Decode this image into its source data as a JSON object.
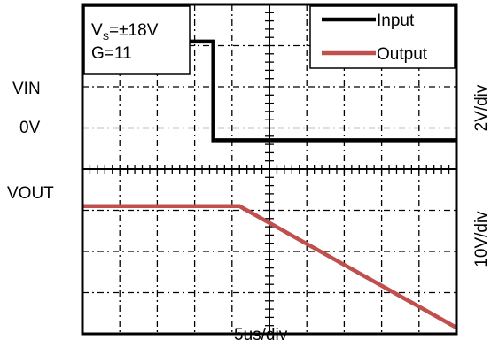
{
  "conditions": {
    "vs_base": "V",
    "vs_sub": "S",
    "vs_value": "=±18V",
    "gain": "G=11"
  },
  "left_labels": {
    "vin": "VIN",
    "zero": "0V",
    "vout": "VOUT"
  },
  "right_labels": {
    "top_scale": "2V/div",
    "bottom_scale": "10V/div"
  },
  "x_axis_label": "5us/div",
  "colors": {
    "input": "#000000",
    "output": "#c0504d",
    "grid": "#000000",
    "background": "#ffffff"
  },
  "chart_data": {
    "type": "line",
    "title": "",
    "grid": true,
    "grid_divisions": {
      "x": 10,
      "y": 8
    },
    "legend_position": "top-right",
    "xlabel": "5us/div",
    "x_unit": "div",
    "xlim": [
      0,
      10
    ],
    "y_unit": "div",
    "ylim": [
      0,
      8
    ],
    "series": [
      {
        "name": "Input",
        "color": "#000000",
        "x": [
          0,
          3.5,
          3.5,
          10
        ],
        "y": [
          7.1,
          7.1,
          4.7,
          4.7
        ]
      },
      {
        "name": "Output",
        "color": "#c0504d",
        "x": [
          0,
          4.2,
          10
        ],
        "y": [
          3.1,
          3.1,
          0.15
        ]
      }
    ]
  }
}
